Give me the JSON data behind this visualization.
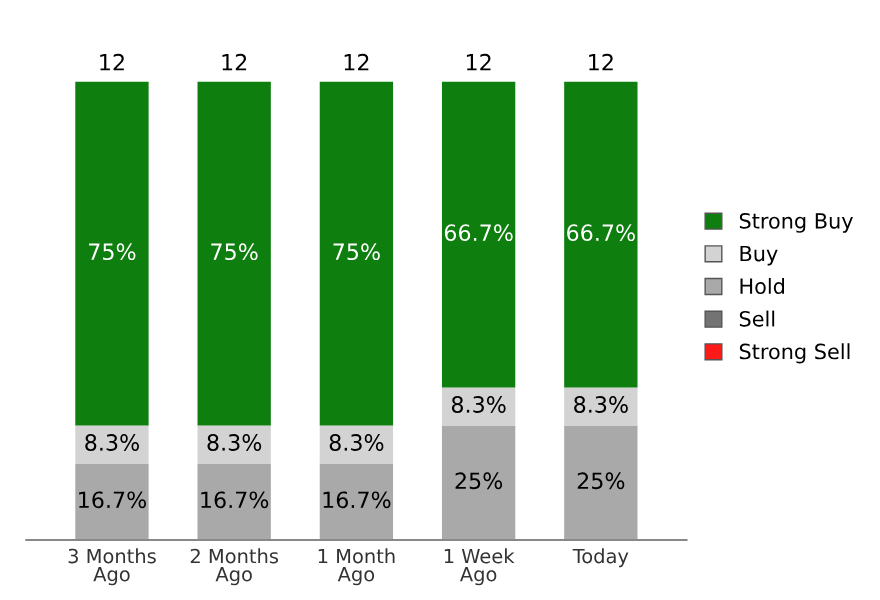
{
  "chart_data": {
    "type": "bar",
    "stacked": true,
    "categories": [
      "3 Months\nAgo",
      "2 Months\nAgo",
      "1 Month\nAgo",
      "1 Week\nAgo",
      "Today"
    ],
    "series": [
      {
        "name": "Strong Sell",
        "color": "#ff1a1a",
        "values": [
          0,
          0,
          0,
          0,
          0
        ],
        "value_labels": [
          null,
          null,
          null,
          null,
          null
        ]
      },
      {
        "name": "Sell",
        "color": "#737373",
        "values": [
          0,
          0,
          0,
          0,
          0
        ],
        "value_labels": [
          null,
          null,
          null,
          null,
          null
        ]
      },
      {
        "name": "Hold",
        "color": "#a9a9a9",
        "values": [
          16.7,
          16.7,
          16.7,
          25,
          25
        ],
        "value_labels": [
          "16.7%",
          "16.7%",
          "16.7%",
          "25%",
          "25%"
        ]
      },
      {
        "name": "Buy",
        "color": "#d3d3d3",
        "values": [
          8.3,
          8.3,
          8.3,
          8.3,
          8.3
        ],
        "value_labels": [
          "8.3%",
          "8.3%",
          "8.3%",
          "8.3%",
          "8.3%"
        ]
      },
      {
        "name": "Strong Buy",
        "color": "#0e7f0e",
        "values": [
          75,
          75,
          75,
          66.7,
          66.7
        ],
        "value_labels": [
          "75%",
          "75%",
          "75%",
          "66.7%",
          "66.7%"
        ]
      }
    ],
    "annotations": [
      {
        "text": "12",
        "x": "3 Months\nAgo",
        "y": 100
      },
      {
        "text": "12",
        "x": "2 Months\nAgo",
        "y": 100
      },
      {
        "text": "12",
        "x": "1 Month\nAgo",
        "y": 100
      },
      {
        "text": "12",
        "x": "1 Week\nAgo",
        "y": 100
      },
      {
        "text": "12",
        "x": "Today",
        "y": 100
      }
    ],
    "legend": "right",
    "grid": false
  }
}
